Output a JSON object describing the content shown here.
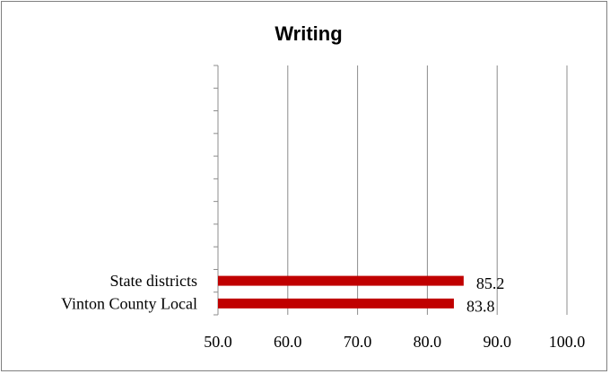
{
  "chart_data": {
    "type": "bar",
    "orientation": "horizontal",
    "title": "Writing",
    "categories": [
      "State districts",
      "Vinton County Local"
    ],
    "values": [
      85.2,
      83.8
    ],
    "data_labels": [
      "85.2",
      "83.8"
    ],
    "xlim": [
      50,
      100
    ],
    "x_ticks": [
      "50.0",
      "60.0",
      "70.0",
      "80.0",
      "90.0",
      "100.0"
    ],
    "grid": "vertical",
    "legend": "none",
    "bar_color": "#C00000"
  }
}
